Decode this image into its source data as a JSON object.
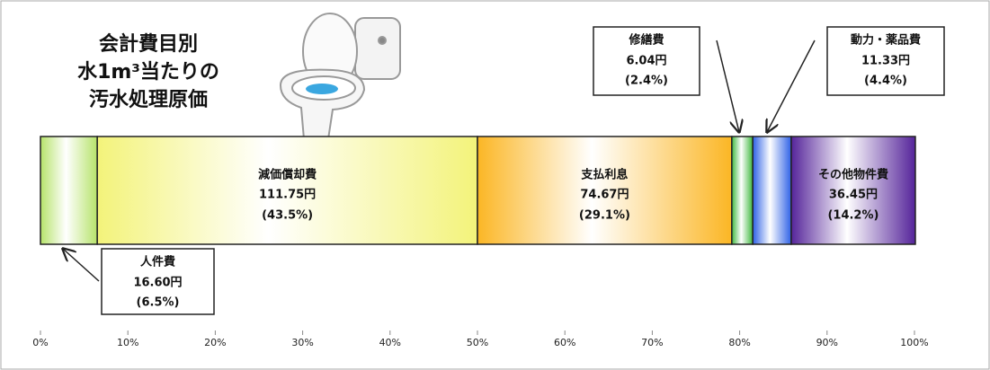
{
  "chart_data": {
    "type": "stacked-bar-100",
    "title_lines": [
      "会計費目別",
      "水1m³当たりの",
      "汚水処理原価"
    ],
    "series": [
      {
        "name": "人件費",
        "color": "#b6e36a",
        "values": [
          6.5
        ],
        "value_labels": [
          "(6.5%)"
        ],
        "amount_label": "16.60円"
      },
      {
        "name": "減価償却費",
        "color": "#f3f37a",
        "values": [
          43.5
        ],
        "value_labels": [
          "(43.5%)"
        ],
        "amount_label": "111.75円"
      },
      {
        "name": "支払利息",
        "color": "#fbb624",
        "values": [
          29.1
        ],
        "value_labels": [
          "(29.1%)"
        ],
        "amount_label": "74.67円"
      },
      {
        "name": "修繕費",
        "color": "#3fb83f",
        "values": [
          2.4
        ],
        "value_labels": [
          "(2.4%)"
        ],
        "amount_label": "6.04円"
      },
      {
        "name": "動力・薬品費",
        "color": "#2f62e6",
        "values": [
          4.4
        ],
        "value_labels": [
          "(4.4%)"
        ],
        "amount_label": "11.33円"
      },
      {
        "name": "その他物件費",
        "color": "#55249a",
        "values": [
          14.2
        ],
        "value_labels": [
          "(14.2%)"
        ],
        "amount_label": "36.45円"
      }
    ],
    "xlim": [
      0,
      100
    ],
    "xticks": [
      {
        "value": 0,
        "label": "0%"
      },
      {
        "value": 10,
        "label": "10%"
      },
      {
        "value": 20,
        "label": "20%"
      },
      {
        "value": 30,
        "label": "30%"
      },
      {
        "value": 40,
        "label": "40%"
      },
      {
        "value": 50,
        "label": "50%"
      },
      {
        "value": 60,
        "label": "60%"
      },
      {
        "value": 70,
        "label": "70%"
      },
      {
        "value": 80,
        "label": "80%"
      },
      {
        "value": 90,
        "label": "90%"
      },
      {
        "value": 100,
        "label": "100%"
      }
    ]
  }
}
